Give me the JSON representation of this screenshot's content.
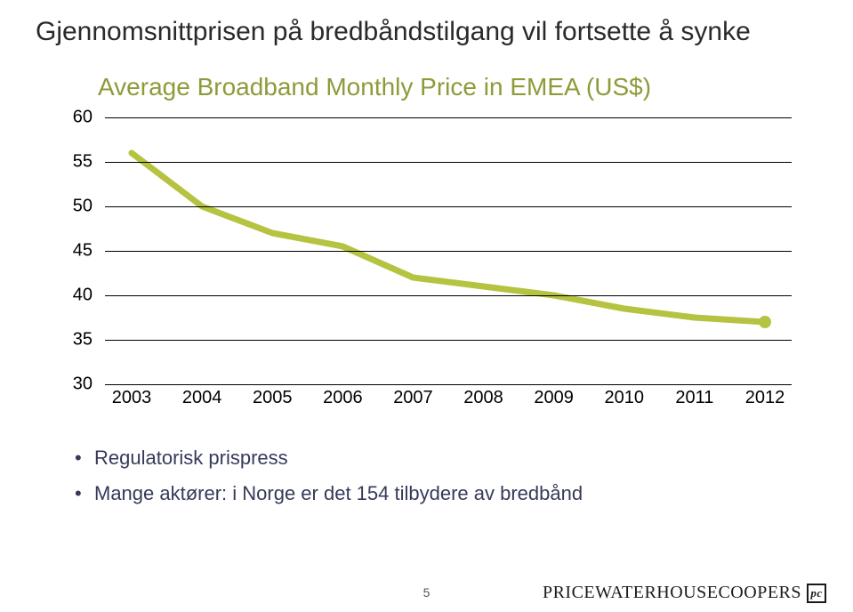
{
  "slide": {
    "title": "Gjennomsnittprisen på bredbåndstilgang vil fortsette å synke",
    "page_number": "5"
  },
  "chart": {
    "type": "line",
    "title": "Average Broadband Monthly Price in EMEA (US$)",
    "title_color": "#8f9a3a",
    "title_fontsize": 28,
    "years": [
      "2003",
      "2004",
      "2005",
      "2006",
      "2007",
      "2008",
      "2009",
      "2010",
      "2011",
      "2012"
    ],
    "values": [
      56,
      50,
      47,
      45.5,
      42,
      41,
      40,
      38.5,
      37.5,
      37
    ],
    "ylim": [
      30,
      60
    ],
    "yticks": [
      30,
      35,
      40,
      45,
      50,
      55,
      60
    ],
    "label_fontsize": 20,
    "line_color": "#b6c340",
    "line_width": 7,
    "grid_color": "#000000",
    "background_color": "#ffffff",
    "marker_end": {
      "size": 7,
      "color": "#b6c340"
    }
  },
  "bullets": {
    "items": [
      "Regulatorisk prispress",
      "Mange aktører: i Norge er det 154 tilbydere av bredbånd"
    ],
    "color": "#363a5a",
    "fontsize": 22
  },
  "logo": {
    "text": "PRICEWATERHOUSECOOPERS",
    "mark": "pc"
  }
}
